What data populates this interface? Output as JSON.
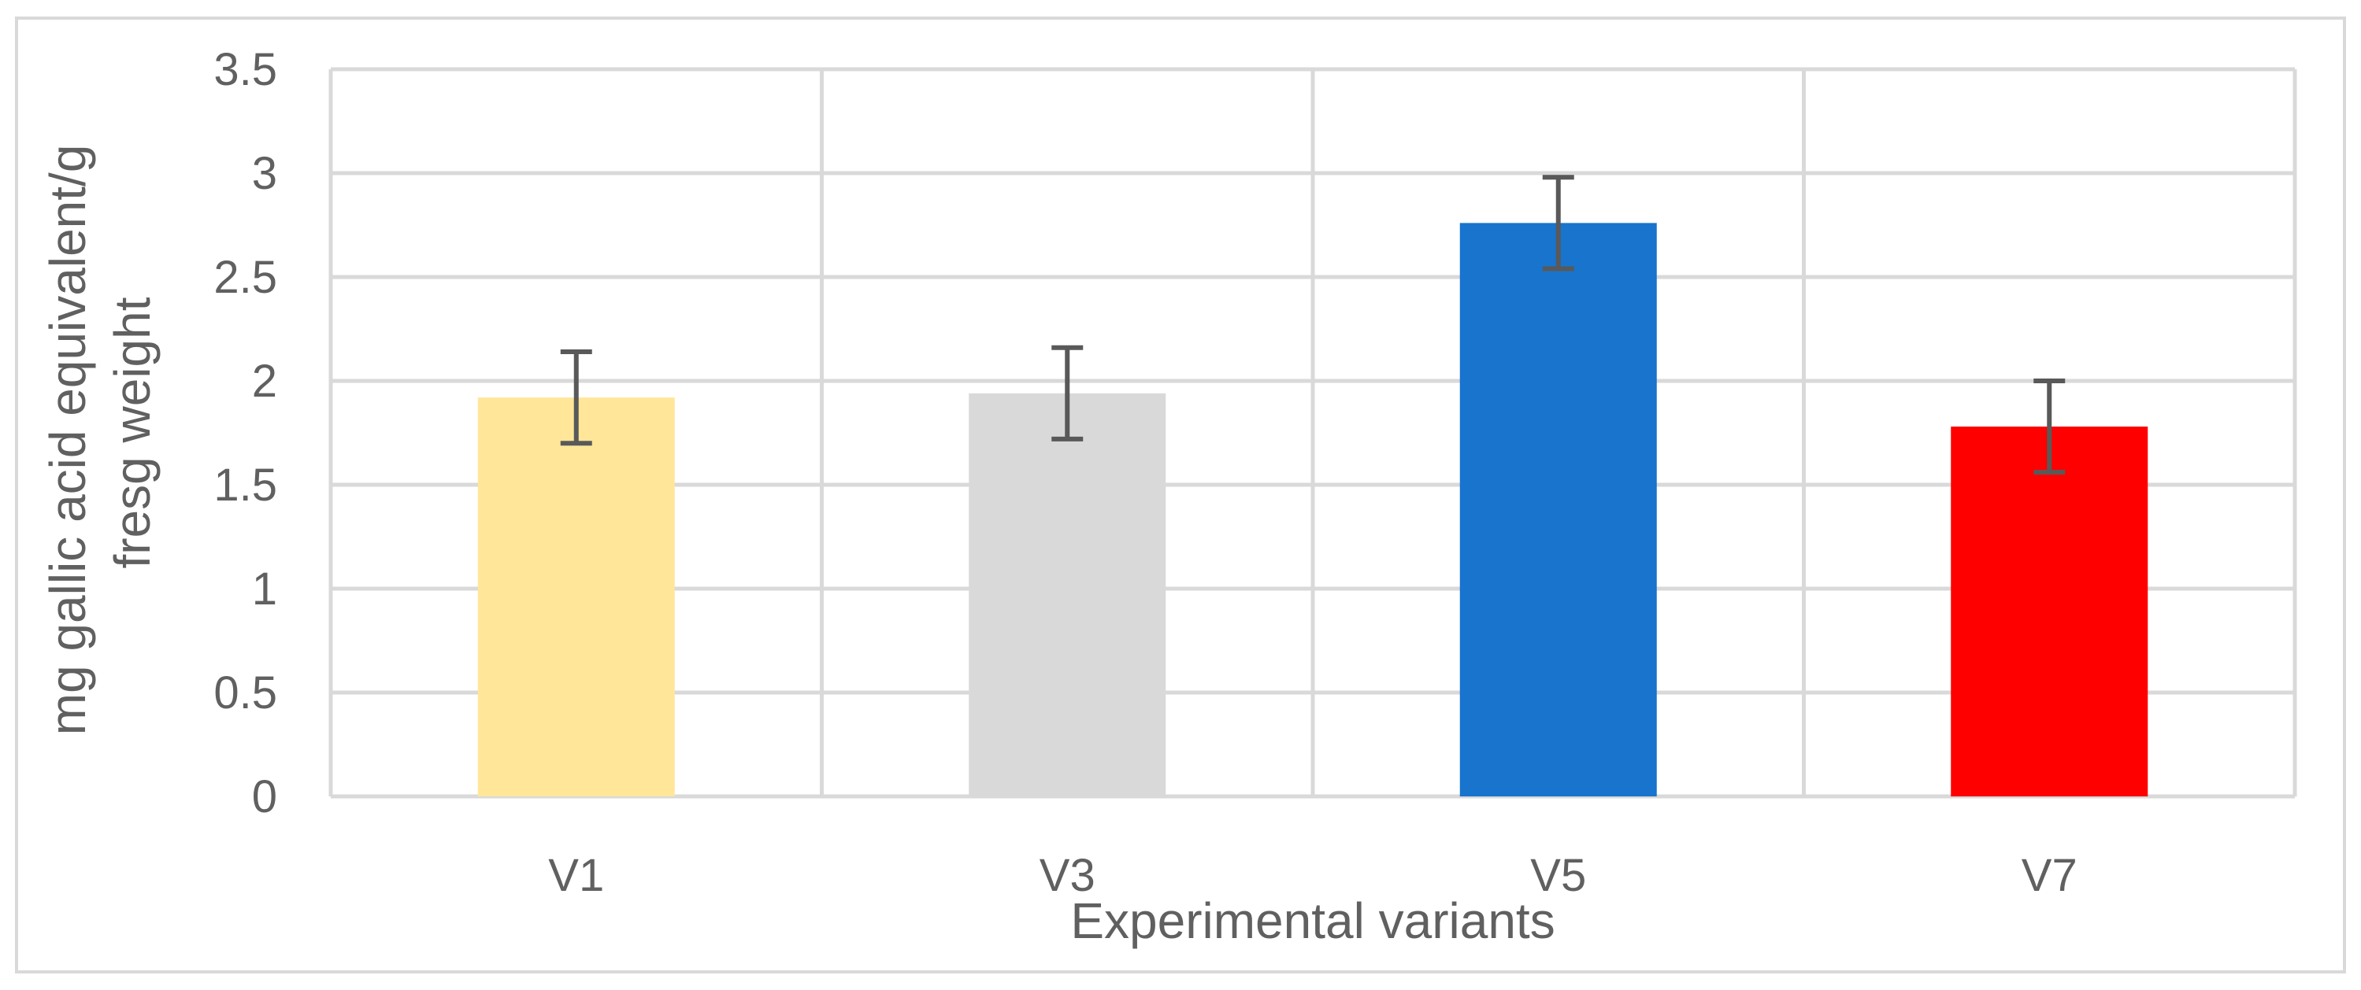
{
  "chart_data": {
    "type": "bar",
    "title": "",
    "xlabel": "Experimental variants",
    "ylabel": [
      "mg gallic acid equivalent/g",
      "fresg weight"
    ],
    "categories": [
      "V1",
      "V3",
      "V5",
      "V7"
    ],
    "series": [
      {
        "values": [
          1.92,
          1.94,
          2.76,
          1.78
        ],
        "errors": [
          0.22,
          0.22,
          0.22,
          0.22
        ],
        "colors": [
          "#FFE699",
          "#D9D9D9",
          "#1874CD",
          "#FF0000"
        ]
      }
    ],
    "ylim": [
      0,
      3.5
    ],
    "yticks": [
      "0",
      "0.5",
      "1",
      "1.5",
      "2",
      "2.5",
      "3",
      "3.5"
    ],
    "grid": true,
    "legend": "none"
  }
}
